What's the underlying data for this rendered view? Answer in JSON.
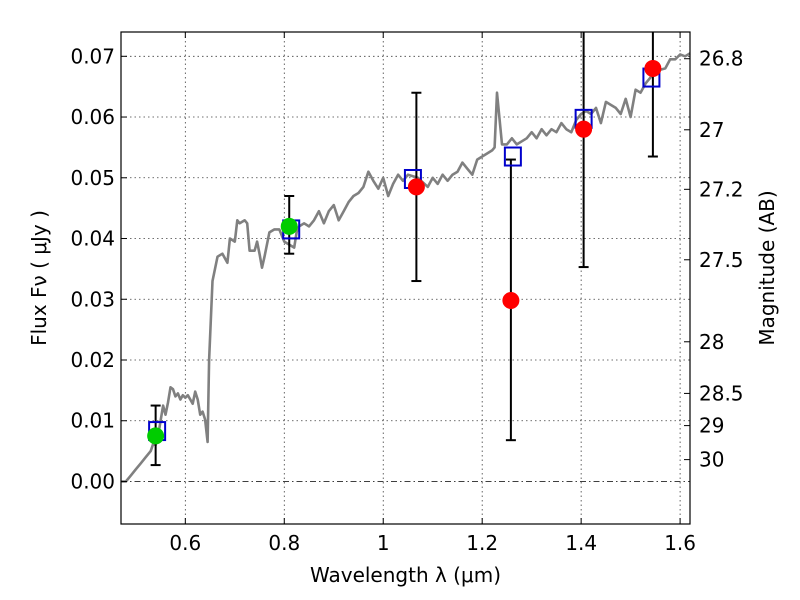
{
  "chart_data": {
    "type": "scatter",
    "xlabel": "Wavelength  λ (μm)",
    "ylabel": "Flux  Fν  ( μJy )",
    "y2label": "Magnitude (AB)",
    "xlim": [
      0.47,
      1.62
    ],
    "ylim": [
      -0.007,
      0.074
    ],
    "grid": true,
    "xticks": [
      {
        "v": 0.6,
        "label": "0.6"
      },
      {
        "v": 0.8,
        "label": "0.8"
      },
      {
        "v": 1.0,
        "label": "1"
      },
      {
        "v": 1.2,
        "label": "1.2"
      },
      {
        "v": 1.4,
        "label": "1.4"
      },
      {
        "v": 1.6,
        "label": "1.6"
      }
    ],
    "yticks": [
      {
        "v": 0.0,
        "label": "0.00"
      },
      {
        "v": 0.01,
        "label": "0.01"
      },
      {
        "v": 0.02,
        "label": "0.02"
      },
      {
        "v": 0.03,
        "label": "0.03"
      },
      {
        "v": 0.04,
        "label": "0.04"
      },
      {
        "v": 0.05,
        "label": "0.05"
      },
      {
        "v": 0.06,
        "label": "0.06"
      },
      {
        "v": 0.07,
        "label": "0.07"
      }
    ],
    "mag_ticks": [
      {
        "label": "26.8",
        "flux": 0.0696
      },
      {
        "label": "27",
        "flux": 0.0579
      },
      {
        "label": "27.2",
        "flux": 0.0481
      },
      {
        "label": "27.5",
        "flux": 0.0365
      },
      {
        "label": "28",
        "flux": 0.023
      },
      {
        "label": "28.5",
        "flux": 0.0145
      },
      {
        "label": "29",
        "flux": 0.0092
      },
      {
        "label": "30",
        "flux": 0.0036
      }
    ],
    "series": [
      {
        "kind": "model_sed",
        "color": "#808080",
        "points": [
          [
            0.47,
            0.0
          ],
          [
            0.48,
            0.0
          ],
          [
            0.49,
            0.001
          ],
          [
            0.5,
            0.002
          ],
          [
            0.51,
            0.003
          ],
          [
            0.52,
            0.004
          ],
          [
            0.53,
            0.005
          ],
          [
            0.535,
            0.0062
          ],
          [
            0.54,
            0.006
          ],
          [
            0.545,
            0.0075
          ],
          [
            0.55,
            0.01
          ],
          [
            0.555,
            0.0125
          ],
          [
            0.56,
            0.011
          ],
          [
            0.565,
            0.013
          ],
          [
            0.57,
            0.0155
          ],
          [
            0.575,
            0.0152
          ],
          [
            0.58,
            0.014
          ],
          [
            0.585,
            0.0145
          ],
          [
            0.59,
            0.0135
          ],
          [
            0.595,
            0.0142
          ],
          [
            0.6,
            0.0138
          ],
          [
            0.605,
            0.0142
          ],
          [
            0.61,
            0.0135
          ],
          [
            0.615,
            0.0128
          ],
          [
            0.62,
            0.0148
          ],
          [
            0.625,
            0.0135
          ],
          [
            0.63,
            0.011
          ],
          [
            0.635,
            0.0115
          ],
          [
            0.64,
            0.0102
          ],
          [
            0.645,
            0.0065
          ],
          [
            0.648,
            0.02
          ],
          [
            0.655,
            0.033
          ],
          [
            0.665,
            0.037
          ],
          [
            0.675,
            0.0375
          ],
          [
            0.685,
            0.036
          ],
          [
            0.69,
            0.04
          ],
          [
            0.7,
            0.0395
          ],
          [
            0.705,
            0.043
          ],
          [
            0.71,
            0.0425
          ],
          [
            0.72,
            0.043
          ],
          [
            0.725,
            0.0425
          ],
          [
            0.73,
            0.038
          ],
          [
            0.74,
            0.038
          ],
          [
            0.745,
            0.0395
          ],
          [
            0.75,
            0.0375
          ],
          [
            0.755,
            0.0352
          ],
          [
            0.76,
            0.037
          ],
          [
            0.77,
            0.041
          ],
          [
            0.78,
            0.0415
          ],
          [
            0.79,
            0.0415
          ],
          [
            0.8,
            0.0395
          ],
          [
            0.81,
            0.039
          ],
          [
            0.82,
            0.0385
          ],
          [
            0.825,
            0.041
          ],
          [
            0.83,
            0.042
          ],
          [
            0.84,
            0.0425
          ],
          [
            0.85,
            0.042
          ],
          [
            0.86,
            0.043
          ],
          [
            0.87,
            0.0445
          ],
          [
            0.88,
            0.0425
          ],
          [
            0.89,
            0.0445
          ],
          [
            0.9,
            0.0455
          ],
          [
            0.91,
            0.043
          ],
          [
            0.92,
            0.0445
          ],
          [
            0.93,
            0.046
          ],
          [
            0.94,
            0.047
          ],
          [
            0.95,
            0.0475
          ],
          [
            0.96,
            0.0485
          ],
          [
            0.97,
            0.051
          ],
          [
            0.98,
            0.0495
          ],
          [
            0.99,
            0.0482
          ],
          [
            1.0,
            0.05
          ],
          [
            1.01,
            0.047
          ],
          [
            1.02,
            0.049
          ],
          [
            1.03,
            0.0505
          ],
          [
            1.04,
            0.0495
          ],
          [
            1.05,
            0.0505
          ],
          [
            1.07,
            0.05
          ],
          [
            1.09,
            0.0485
          ],
          [
            1.1,
            0.05
          ],
          [
            1.11,
            0.049
          ],
          [
            1.12,
            0.0505
          ],
          [
            1.13,
            0.0495
          ],
          [
            1.14,
            0.0505
          ],
          [
            1.15,
            0.051
          ],
          [
            1.16,
            0.0525
          ],
          [
            1.17,
            0.0515
          ],
          [
            1.18,
            0.0505
          ],
          [
            1.19,
            0.053
          ],
          [
            1.2,
            0.0535
          ],
          [
            1.21,
            0.054
          ],
          [
            1.22,
            0.0545
          ],
          [
            1.225,
            0.055
          ],
          [
            1.23,
            0.064
          ],
          [
            1.24,
            0.0555
          ],
          [
            1.25,
            0.0555
          ],
          [
            1.26,
            0.0565
          ],
          [
            1.27,
            0.0555
          ],
          [
            1.28,
            0.056
          ],
          [
            1.29,
            0.0565
          ],
          [
            1.3,
            0.0575
          ],
          [
            1.31,
            0.0565
          ],
          [
            1.32,
            0.058
          ],
          [
            1.33,
            0.057
          ],
          [
            1.34,
            0.058
          ],
          [
            1.35,
            0.0575
          ],
          [
            1.36,
            0.059
          ],
          [
            1.37,
            0.058
          ],
          [
            1.38,
            0.0575
          ],
          [
            1.39,
            0.0595
          ],
          [
            1.4,
            0.0605
          ],
          [
            1.41,
            0.061
          ],
          [
            1.42,
            0.0605
          ],
          [
            1.43,
            0.0615
          ],
          [
            1.44,
            0.059
          ],
          [
            1.45,
            0.0625
          ],
          [
            1.46,
            0.062
          ],
          [
            1.47,
            0.0615
          ],
          [
            1.48,
            0.0605
          ],
          [
            1.49,
            0.063
          ],
          [
            1.5,
            0.06
          ],
          [
            1.51,
            0.0645
          ],
          [
            1.52,
            0.064
          ],
          [
            1.53,
            0.0655
          ],
          [
            1.54,
            0.0665
          ],
          [
            1.55,
            0.068
          ],
          [
            1.56,
            0.0678
          ],
          [
            1.57,
            0.068
          ],
          [
            1.58,
            0.0695
          ],
          [
            1.59,
            0.0695
          ],
          [
            1.6,
            0.0703
          ],
          [
            1.61,
            0.07
          ],
          [
            1.62,
            0.0705
          ]
        ]
      },
      {
        "kind": "model_band_flux",
        "marker": "open-square",
        "color": "#0000cc",
        "points": [
          {
            "x": 0.543,
            "y": 0.0083
          },
          {
            "x": 0.814,
            "y": 0.0415
          },
          {
            "x": 1.06,
            "y": 0.0498
          },
          {
            "x": 1.262,
            "y": 0.0535
          },
          {
            "x": 1.405,
            "y": 0.0597
          },
          {
            "x": 1.542,
            "y": 0.0665
          }
        ]
      },
      {
        "kind": "detections",
        "marker": "filled-circle",
        "color": "#00cc00",
        "points": [
          {
            "x": 0.54,
            "y": 0.0075,
            "ylo": 0.0027,
            "yhi": 0.0125
          },
          {
            "x": 0.81,
            "y": 0.042,
            "ylo": 0.0375,
            "yhi": 0.047
          }
        ]
      },
      {
        "kind": "non_detections",
        "marker": "filled-circle",
        "color": "#ff0000",
        "points": [
          {
            "x": 1.067,
            "y": 0.0485,
            "ylo": 0.033,
            "yhi": 0.064
          },
          {
            "x": 1.258,
            "y": 0.0298,
            "ylo": 0.0068,
            "yhi": 0.053
          },
          {
            "x": 1.405,
            "y": 0.058,
            "ylo": 0.0353,
            "yhi": 0.075
          },
          {
            "x": 1.545,
            "y": 0.068,
            "ylo": 0.0535,
            "yhi": 0.075
          }
        ]
      }
    ]
  }
}
